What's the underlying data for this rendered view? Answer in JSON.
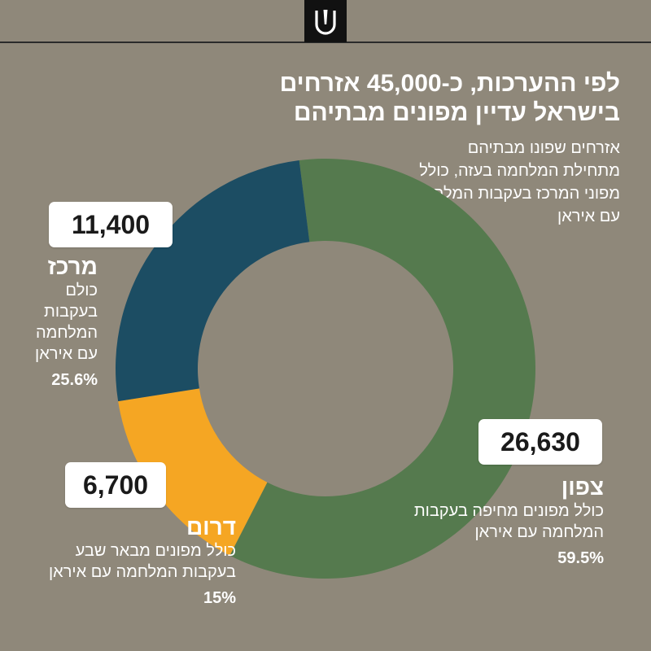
{
  "logo": {
    "icon": "ynet-logo-icon"
  },
  "header": {
    "title_line1": "לפי ההערכות, כ-45,000 אזרחים",
    "title_line2": "בישראל עדיין מפונים מבתיהם",
    "subtitle": "אזרחים שפונו מבתיהם מתחילת המלחמה בעזה, כולל מפוני המרכז בעקבות המלחמה עם איראן"
  },
  "colors": {
    "background": "#8f887a",
    "north": "#557a4e",
    "center": "#1c4d63",
    "south": "#f5a623"
  },
  "chart_data": {
    "type": "pie",
    "donut": true,
    "title": "לפי ההערכות, כ-45,000 אזרחים בישראל עדיין מפונים מבתיהם",
    "slices": [
      {
        "name": "צפון",
        "value": 26630,
        "percent": 59.5,
        "percent_label": "59.5%",
        "value_label": "26,630",
        "note": "כולל מפונים מחיפה בעקבות המלחמה עם איראן",
        "color": "#557a4e"
      },
      {
        "name": "דרום",
        "value": 6700,
        "percent": 15,
        "percent_label": "15%",
        "value_label": "6,700",
        "note": "כולל מפונים מבאר שבע בעקבות המלחמה עם איראן",
        "color": "#f5a623"
      },
      {
        "name": "מרכז",
        "value": 11400,
        "percent": 25.6,
        "percent_label": "25.6%",
        "value_label": "11,400",
        "note": "כולם בעקבות המלחמה עם איראן",
        "color": "#1c4d63"
      }
    ]
  }
}
